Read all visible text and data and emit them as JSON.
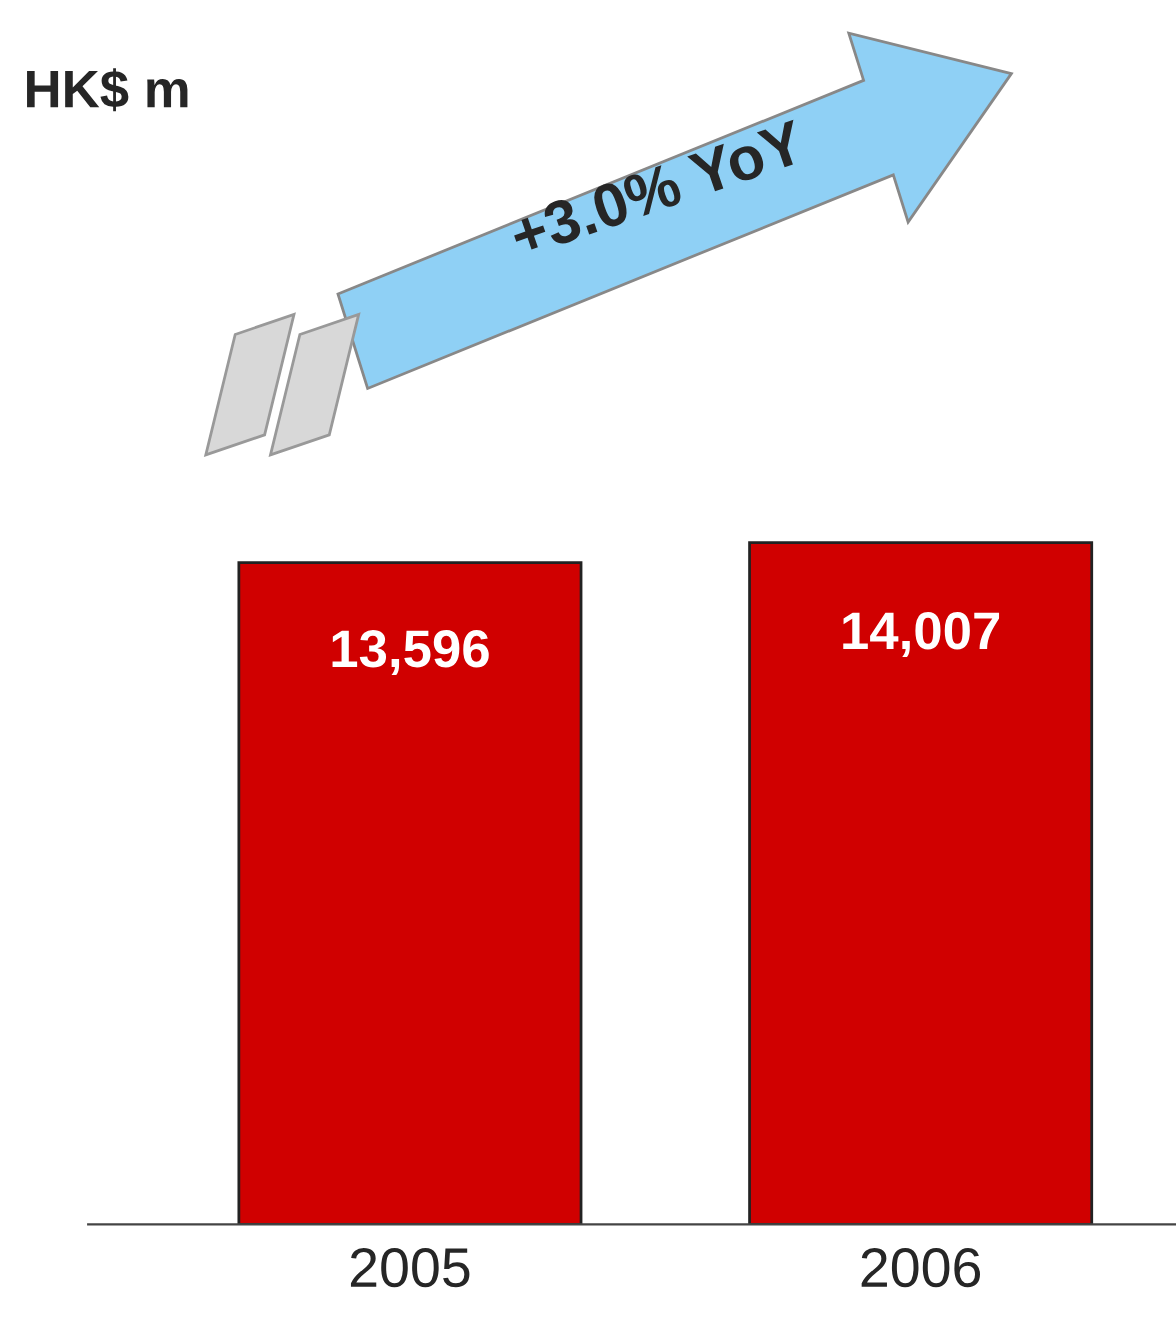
{
  "chart_data": {
    "type": "bar",
    "title": "HK$ m",
    "categories": [
      "2005",
      "2006"
    ],
    "values": [
      13596,
      14007
    ],
    "color": "#d00000",
    "value_labels": [
      "13,596",
      "14,007"
    ],
    "annotations": [
      "+3.0% YoY"
    ],
    "grid": false,
    "legend": false,
    "tick_labels": "x"
  }
}
